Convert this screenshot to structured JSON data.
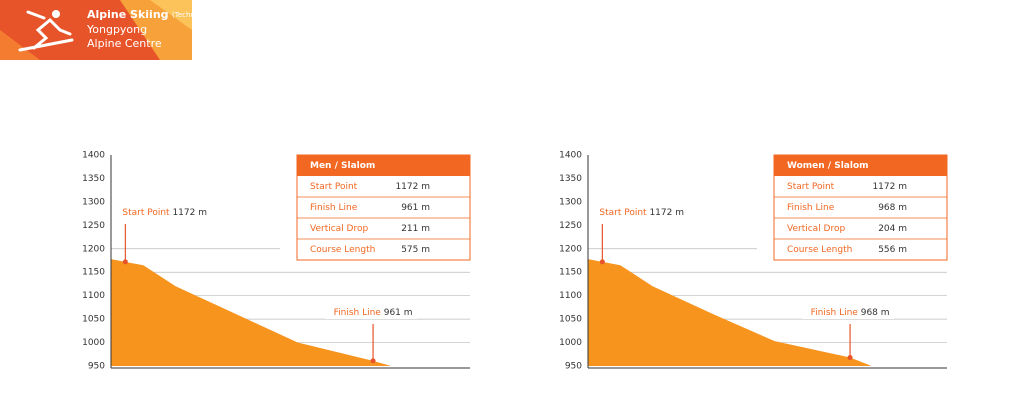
{
  "header": {
    "title": "Alpine Skiing",
    "title_note": "(Technical)",
    "venue_lines": [
      "Yongpyong",
      "Alpine Centre"
    ]
  },
  "chart_data": [
    {
      "type": "area",
      "color": "#f7941d",
      "x": [
        0,
        4,
        9,
        18,
        35,
        52,
        73,
        78
      ],
      "values": [
        1178,
        1172,
        1165,
        1120,
        1060,
        1000,
        961,
        950
      ],
      "xlim": [
        0,
        100
      ],
      "ylim": [
        950,
        1400
      ],
      "yticks": [
        950,
        1000,
        1050,
        1100,
        1150,
        1200,
        1250,
        1300,
        1350,
        1400
      ],
      "annotations": [
        {
          "label": "Start Point",
          "x": 4,
          "value": 1172,
          "value_label": "1172 m"
        },
        {
          "label": "Finish Line",
          "x": 73,
          "value": 961,
          "value_label": "961 m"
        }
      ],
      "table": {
        "title": "Men / Slalom",
        "rows": [
          [
            "Start Point",
            "1172 m"
          ],
          [
            "Finish Line",
            "961 m"
          ],
          [
            "Vertical Drop",
            "211 m"
          ],
          [
            "Course Length",
            "575 m"
          ]
        ]
      }
    },
    {
      "type": "area",
      "color": "#f7941d",
      "x": [
        0,
        4,
        9,
        18,
        35,
        52,
        73,
        79
      ],
      "values": [
        1178,
        1172,
        1165,
        1120,
        1060,
        1003,
        968,
        950
      ],
      "xlim": [
        0,
        100
      ],
      "ylim": [
        950,
        1400
      ],
      "yticks": [
        950,
        1000,
        1050,
        1100,
        1150,
        1200,
        1250,
        1300,
        1350,
        1400
      ],
      "annotations": [
        {
          "label": "Start Point",
          "x": 4,
          "value": 1172,
          "value_label": "1172 m"
        },
        {
          "label": "Finish Line",
          "x": 73,
          "value": 968,
          "value_label": "968 m"
        }
      ],
      "table": {
        "title": "Women / Slalom",
        "rows": [
          [
            "Start Point",
            "1172 m"
          ],
          [
            "Finish Line",
            "968 m"
          ],
          [
            "Vertical Drop",
            "204 m"
          ],
          [
            "Course Length",
            "556 m"
          ]
        ]
      }
    }
  ]
}
